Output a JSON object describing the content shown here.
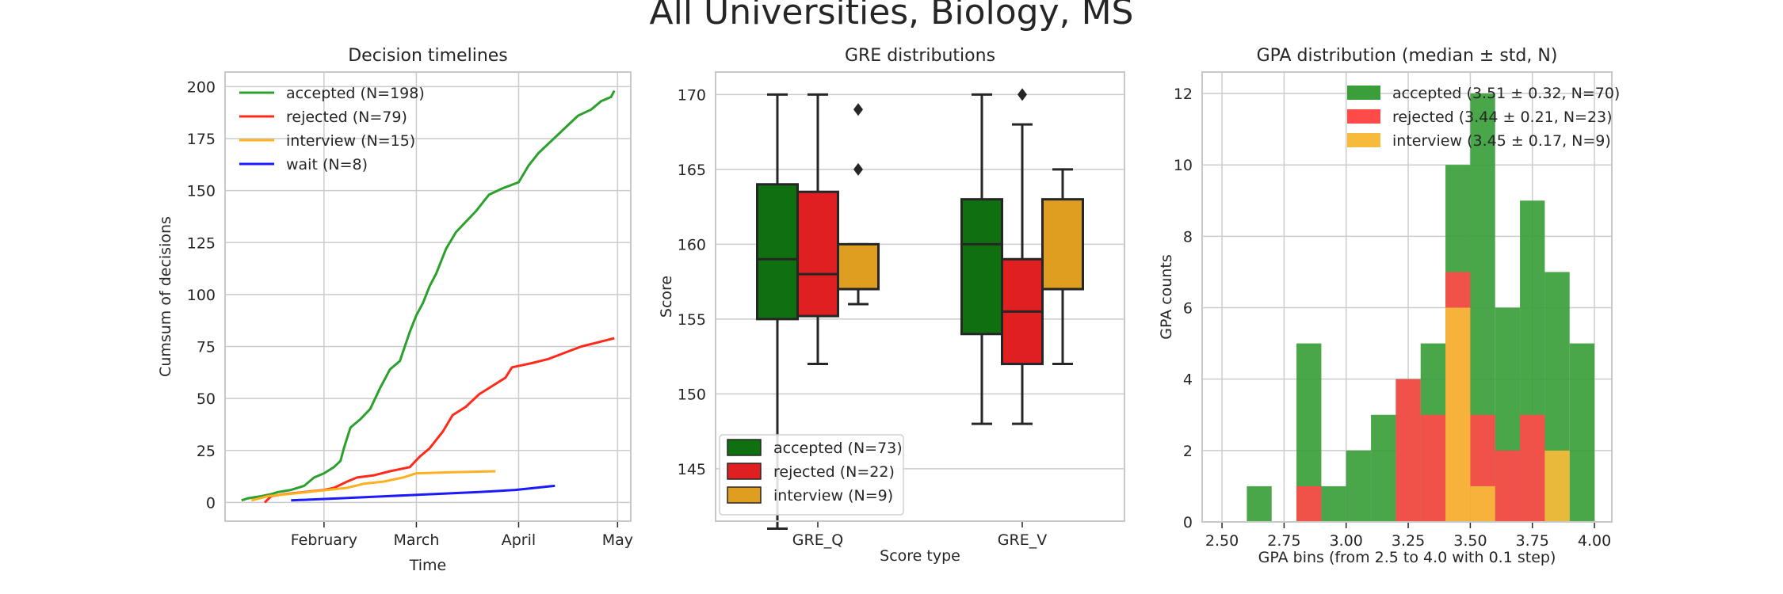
{
  "figure": {
    "title": "All Universities, Biology, MS"
  },
  "colors": {
    "accepted_line": "#2ca02c",
    "rejected_line": "#ff2a1a",
    "interview_line": "#ffb020",
    "wait_line": "#1a1aff",
    "accepted_box": "#0f7010",
    "rejected_box": "#e02020",
    "interview_box": "#e09e20",
    "accepted_hist": "#3a9e3a",
    "rejected_hist": "#ff4a4a",
    "interview_hist": "#f6bb3b",
    "grid": "#cccccc",
    "frame": "#c8c8c8",
    "text": "#262626"
  },
  "chart_data": [
    {
      "type": "line",
      "title": "Decision timelines",
      "xlabel": "Time",
      "ylabel": "Cumsum of decisions",
      "x_ticks": [
        "February",
        "March",
        "April",
        "May"
      ],
      "x_tick_dates": [
        "2019-02-01",
        "2019-03-01",
        "2019-04-01",
        "2019-05-01"
      ],
      "xlim": [
        "2019-01-02",
        "2019-05-05"
      ],
      "ylim": [
        -9,
        207
      ],
      "y_ticks": [
        0,
        25,
        50,
        75,
        100,
        125,
        150,
        175,
        200
      ],
      "grid": true,
      "legend_position": "top-left",
      "series": [
        {
          "name": "accepted (N=198)",
          "color_key": "accepted_line",
          "points": [
            [
              "2019-01-07",
              1
            ],
            [
              "2019-01-09",
              2
            ],
            [
              "2019-01-13",
              3
            ],
            [
              "2019-01-16",
              4
            ],
            [
              "2019-01-18",
              5
            ],
            [
              "2019-01-22",
              6
            ],
            [
              "2019-01-26",
              8
            ],
            [
              "2019-01-29",
              12
            ],
            [
              "2019-02-01",
              14
            ],
            [
              "2019-02-04",
              17
            ],
            [
              "2019-02-06",
              20
            ],
            [
              "2019-02-07",
              26
            ],
            [
              "2019-02-09",
              36
            ],
            [
              "2019-02-12",
              40
            ],
            [
              "2019-02-15",
              45
            ],
            [
              "2019-02-18",
              55
            ],
            [
              "2019-02-21",
              64
            ],
            [
              "2019-02-24",
              68
            ],
            [
              "2019-02-27",
              82
            ],
            [
              "2019-03-01",
              90
            ],
            [
              "2019-03-03",
              96
            ],
            [
              "2019-03-05",
              104
            ],
            [
              "2019-03-07",
              110
            ],
            [
              "2019-03-10",
              122
            ],
            [
              "2019-03-13",
              130
            ],
            [
              "2019-03-16",
              135
            ],
            [
              "2019-03-19",
              140
            ],
            [
              "2019-03-23",
              148
            ],
            [
              "2019-03-27",
              151
            ],
            [
              "2019-04-01",
              154
            ],
            [
              "2019-04-04",
              162
            ],
            [
              "2019-04-07",
              168
            ],
            [
              "2019-04-11",
              174
            ],
            [
              "2019-04-15",
              180
            ],
            [
              "2019-04-19",
              186
            ],
            [
              "2019-04-23",
              189
            ],
            [
              "2019-04-26",
              193
            ],
            [
              "2019-04-29",
              195
            ],
            [
              "2019-04-30",
              198
            ]
          ]
        },
        {
          "name": "rejected (N=79)",
          "color_key": "rejected_line",
          "points": [
            [
              "2019-01-14",
              0
            ],
            [
              "2019-01-16",
              3
            ],
            [
              "2019-01-20",
              4
            ],
            [
              "2019-01-26",
              5
            ],
            [
              "2019-02-01",
              6
            ],
            [
              "2019-02-04",
              7
            ],
            [
              "2019-02-08",
              10
            ],
            [
              "2019-02-11",
              12
            ],
            [
              "2019-02-16",
              13
            ],
            [
              "2019-02-21",
              15
            ],
            [
              "2019-02-27",
              17
            ],
            [
              "2019-03-02",
              22
            ],
            [
              "2019-03-05",
              26
            ],
            [
              "2019-03-09",
              34
            ],
            [
              "2019-03-12",
              42
            ],
            [
              "2019-03-16",
              46
            ],
            [
              "2019-03-20",
              52
            ],
            [
              "2019-03-24",
              56
            ],
            [
              "2019-03-28",
              60
            ],
            [
              "2019-03-30",
              65
            ],
            [
              "2019-04-05",
              67
            ],
            [
              "2019-04-10",
              69
            ],
            [
              "2019-04-15",
              72
            ],
            [
              "2019-04-20",
              75
            ],
            [
              "2019-04-25",
              77
            ],
            [
              "2019-04-30",
              79
            ]
          ]
        },
        {
          "name": "interview (N=15)",
          "color_key": "interview_line",
          "points": [
            [
              "2019-01-10",
              1
            ],
            [
              "2019-01-15",
              3
            ],
            [
              "2019-01-21",
              4
            ],
            [
              "2019-01-27",
              5
            ],
            [
              "2019-02-02",
              6
            ],
            [
              "2019-02-08",
              7
            ],
            [
              "2019-02-13",
              9
            ],
            [
              "2019-02-19",
              10
            ],
            [
              "2019-02-25",
              12
            ],
            [
              "2019-03-01",
              14
            ],
            [
              "2019-03-12",
              14.5
            ],
            [
              "2019-03-25",
              15
            ]
          ]
        },
        {
          "name": "wait (N=8)",
          "color_key": "wait_line",
          "points": [
            [
              "2019-01-22",
              1
            ],
            [
              "2019-02-06",
              2
            ],
            [
              "2019-02-20",
              3
            ],
            [
              "2019-03-06",
              4
            ],
            [
              "2019-03-20",
              5
            ],
            [
              "2019-03-31",
              6
            ],
            [
              "2019-04-06",
              7
            ],
            [
              "2019-04-12",
              8
            ]
          ]
        }
      ]
    },
    {
      "type": "box",
      "title": "GRE distributions",
      "xlabel": "Score type",
      "ylabel": "Score",
      "categories": [
        "GRE_Q",
        "GRE_V"
      ],
      "ylim": [
        141.5,
        171.5
      ],
      "y_ticks": [
        145,
        150,
        155,
        160,
        165,
        170
      ],
      "grid": true,
      "legend_position": "bottom-left",
      "series": [
        {
          "name": "accepted (N=73)",
          "color_key": "accepted_box",
          "boxes": [
            {
              "whislo": 141,
              "q1": 155,
              "med": 159,
              "q3": 164,
              "whishi": 170,
              "fliers": []
            },
            {
              "whislo": 148,
              "q1": 154,
              "med": 160,
              "q3": 163,
              "whishi": 170,
              "fliers": []
            }
          ]
        },
        {
          "name": "rejected (N=22)",
          "color_key": "rejected_box",
          "boxes": [
            {
              "whislo": 152,
              "q1": 155.2,
              "med": 158,
              "q3": 163.5,
              "whishi": 170,
              "fliers": []
            },
            {
              "whislo": 148,
              "q1": 152,
              "med": 155.5,
              "q3": 159,
              "whishi": 168,
              "fliers": [
                170
              ]
            }
          ]
        },
        {
          "name": "interview (N=9)",
          "color_key": "interview_box",
          "boxes": [
            {
              "whislo": 156,
              "q1": 157,
              "med": 157,
              "q3": 160,
              "whishi": 160,
              "fliers": [
                165,
                169
              ]
            },
            {
              "whislo": 152,
              "q1": 157,
              "med": 157,
              "q3": 163,
              "whishi": 165,
              "fliers": []
            }
          ]
        }
      ]
    },
    {
      "type": "histogram",
      "title": "GPA distribution (median ± std, N)",
      "xlabel": "GPA bins (from 2.5 to 4.0 with 0.1 step)",
      "ylabel": "GPA counts",
      "bin_edges": [
        2.5,
        2.6,
        2.7,
        2.8,
        2.9,
        3.0,
        3.1,
        3.2,
        3.3,
        3.4,
        3.5,
        3.6,
        3.7,
        3.8,
        3.9,
        4.0
      ],
      "x_ticks": [
        2.5,
        2.75,
        3.0,
        3.25,
        3.5,
        3.75,
        4.0
      ],
      "x_tick_labels": [
        "2.50",
        "2.75",
        "3.00",
        "3.25",
        "3.50",
        "3.75",
        "4.00"
      ],
      "xlim": [
        2.42,
        4.07
      ],
      "ylim": [
        0,
        12.6
      ],
      "y_ticks": [
        0,
        2,
        4,
        6,
        8,
        10,
        12
      ],
      "grid": true,
      "legend_position": "top-right",
      "series": [
        {
          "name": "accepted (3.51 ± 0.32, N=70)",
          "color_key": "accepted_hist",
          "counts": [
            0,
            1,
            0,
            5,
            1,
            2,
            3,
            4,
            5,
            10,
            12,
            6,
            9,
            7,
            5
          ]
        },
        {
          "name": "rejected (3.44 ± 0.21, N=23)",
          "color_key": "rejected_hist",
          "counts": [
            0,
            0,
            0,
            1,
            0,
            0,
            0,
            4,
            3,
            7,
            3,
            2,
            3,
            0,
            0
          ]
        },
        {
          "name": "interview (3.45 ± 0.17, N=9)",
          "color_key": "interview_hist",
          "counts": [
            0,
            0,
            0,
            0,
            0,
            0,
            0,
            0,
            0,
            6,
            1,
            0,
            0,
            2,
            0
          ]
        }
      ]
    }
  ]
}
